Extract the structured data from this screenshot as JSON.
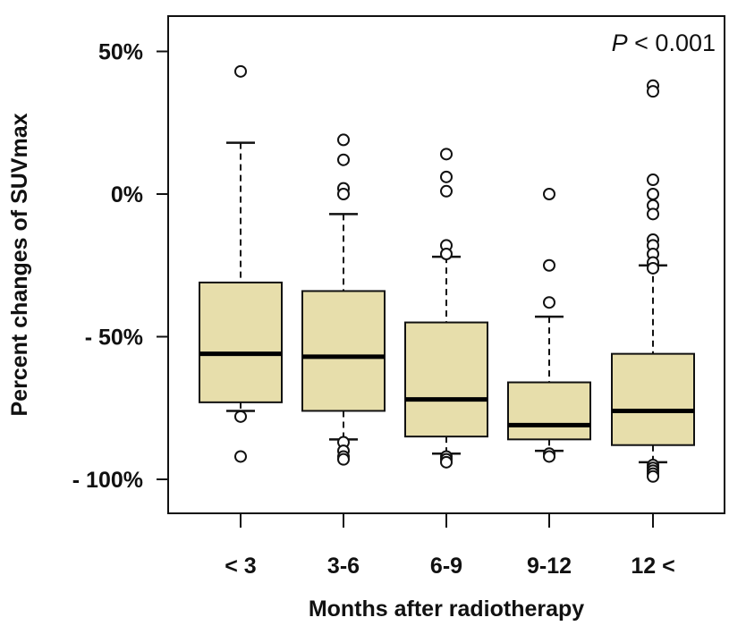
{
  "chart_data": {
    "type": "box",
    "categories": [
      "< 3",
      "3-6",
      "6-9",
      "9-12",
      "12 <"
    ],
    "xlabel": "Months after radiotherapy",
    "ylabel": "Percent changes of SUVmax",
    "ylim": [
      -110,
      60
    ],
    "yticks": [
      50,
      0,
      -50,
      -100
    ],
    "ytick_labels": [
      "50%",
      "0%",
      "- 50%",
      "- 100%"
    ],
    "annotation": {
      "italic": "P",
      "text": " < 0.001"
    },
    "box_fill": "#e7deab",
    "boxes": [
      {
        "category": "< 3",
        "whisker_low": -76,
        "q1": -73,
        "median": -56,
        "q3": -31,
        "whisker_high": 18,
        "outliers": [
          43,
          -78,
          -92
        ]
      },
      {
        "category": "3-6",
        "whisker_low": -86,
        "q1": -76,
        "median": -57,
        "q3": -34,
        "whisker_high": -7,
        "outliers": [
          19,
          12,
          2,
          0,
          -87,
          -90,
          -92,
          -93
        ]
      },
      {
        "category": "6-9",
        "whisker_low": -91,
        "q1": -85,
        "median": -72,
        "q3": -45,
        "whisker_high": -22,
        "outliers": [
          14,
          6,
          1,
          -18,
          -21,
          -92,
          -93,
          -94
        ]
      },
      {
        "category": "9-12",
        "whisker_low": -90,
        "q1": -86,
        "median": -81,
        "q3": -66,
        "whisker_high": -43,
        "outliers": [
          0,
          -25,
          -38,
          -91,
          -92
        ]
      },
      {
        "category": "12 <",
        "whisker_low": -94,
        "q1": -88,
        "median": -76,
        "q3": -56,
        "whisker_high": -25,
        "outliers": [
          38,
          36,
          5,
          0,
          -4,
          -7,
          -16,
          -18,
          -21,
          -24,
          -26,
          -95,
          -96,
          -97,
          -98,
          -99
        ]
      }
    ]
  }
}
